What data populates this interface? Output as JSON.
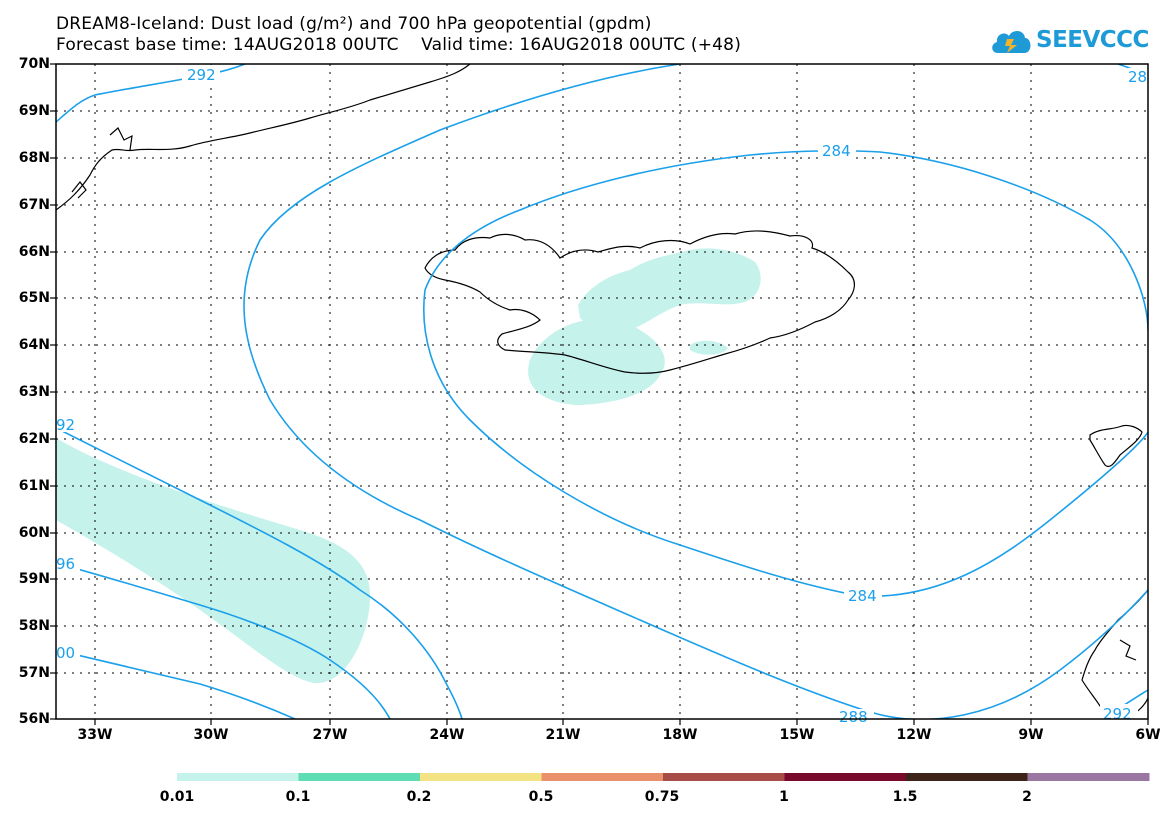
{
  "title_line1": "DREAM8-Iceland: Dust load (g/m²) and 700 hPa geopotential (gpdm)",
  "title_line2": "Forecast base time: 14AUG2018 00UTC    Valid time: 16AUG2018 00UTC (+48)",
  "logo_text": "SEEVCCC",
  "latitude_labels": [
    "70N",
    "69N",
    "68N",
    "67N",
    "66N",
    "65N",
    "64N",
    "63N",
    "62N",
    "61N",
    "60N",
    "59N",
    "58N",
    "57N",
    "56N"
  ],
  "longitude_labels": [
    "33W",
    "30W",
    "27W",
    "24W",
    "21W",
    "18W",
    "15W",
    "12W",
    "9W",
    "6W"
  ],
  "contour_labels": [
    "292",
    "284",
    "284",
    "288",
    "92",
    "96",
    "00",
    "28",
    "292"
  ],
  "colorbar": {
    "thresholds": [
      "0.01",
      "0.1",
      "0.2",
      "0.5",
      "0.75",
      "1",
      "1.5",
      "2"
    ],
    "colors": [
      "#c6f2ec",
      "#5edcb4",
      "#f4e382",
      "#ea906a",
      "#a84c48",
      "#7a0a2c",
      "#3e2418",
      "#9a77a2"
    ]
  },
  "contour_color": "#1aa0ea",
  "dust_fill_color": "#c6f2ec"
}
